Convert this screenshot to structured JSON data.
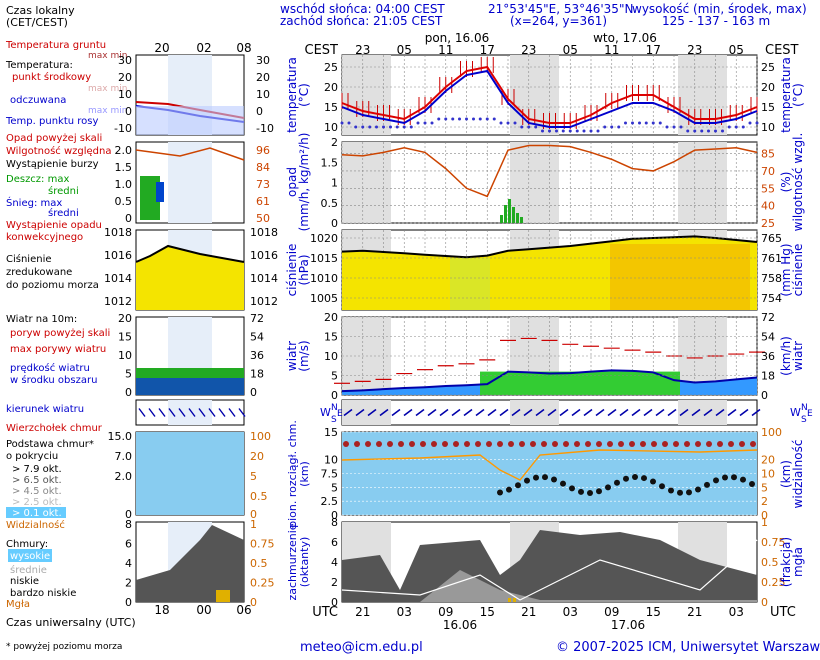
{
  "header": {
    "sunrise": "wschód słońca: 04:00 CEST",
    "sunset": "zachód słońca: 21:05 CEST",
    "coords": "21°53'45\"E, 53°46'35\"N",
    "grid": "(x=264, y=361)",
    "elevation_title": "wysokość (min, środek, max)",
    "elevation_values": "125 - 137 - 163 m"
  },
  "timeline": {
    "cest_label": "CEST",
    "utc_label": "UTC",
    "day1": "pon, 16.06",
    "day2": "wto, 17.06",
    "date1": "16.06",
    "date2": "17.06",
    "cest_hours": [
      "23",
      "05",
      "11",
      "17",
      "23",
      "05",
      "11",
      "17",
      "23",
      "05"
    ],
    "utc_hours": [
      "21",
      "03",
      "09",
      "15",
      "21",
      "03",
      "09",
      "15",
      "21",
      "03"
    ],
    "legend_cest_hours": [
      "20",
      "02",
      "08"
    ],
    "legend_utc_hours": [
      "18",
      "00",
      "06"
    ]
  },
  "legend": {
    "time_zone": "Czas lokalny\n(CET/CEST)",
    "soil_temp": "Temperatura gruntu",
    "soil_maxmin": "max min",
    "temperature": "Temperatura:",
    "midpoint": "punkt środkowy",
    "midpoint_maxmin": "max min",
    "perceived": "odczuwana",
    "perceived_maxmin": "max min",
    "dewpoint": "Temp. punktu rosy",
    "precip_over": "Opad powyżej skali",
    "humidity": "Wilgotność względna",
    "storm": "Wystąpienie burzy",
    "rain_max": "Deszcz: max",
    "rain_mean": "średni",
    "snow_max": "Śnieg:    max",
    "snow_mean": "średni",
    "conv": "Wystąpienie opadu\nkonwekcyjnego",
    "pressure": "Ciśnienie\nzredukowane\ndo poziomu morza",
    "wind_title": "Wiatr na 10m:",
    "gust_over": "poryw powyżej skali",
    "gust_max": "max porywy wiatru",
    "wind_mean": "prędkość wiatru\nw środku obszaru",
    "wind_dir": "kierunek wiatru",
    "cloud_top": "Wierzchołek chmur",
    "cloud_base": "Podstawa chmur*\no pokryciu",
    "okt": [
      "> 7.9 okt.",
      "> 6.5 okt.",
      "> 4.5 okt.",
      "> 2.5 okt.",
      "> 0.1 okt."
    ],
    "visibility": "Widzialność",
    "clouds": "Chmury:",
    "cl_high": "wysokie",
    "cl_mid": "średnie",
    "cl_low": "niskie",
    "cl_vlow": "bardzo niskie",
    "fog": "Mgła",
    "utc_time": "Czas uniwersalny (UTC)"
  },
  "axes": {
    "temp_left": "temperatura\n(°C)",
    "temp_right": "temperatura\n(°C)",
    "precip_left": "opad\n(mm/h, kg/m²/h)",
    "hum_right": "(%)\nwilgotność wzgl.",
    "press_left": "ciśnienie\n(hPa)",
    "press_right": "(mm Hg)\nciśnienie",
    "wind_left": "wiatr\n(m/s)",
    "wind_right": "(km/h)\nwiatr",
    "cloud_left": "pion. rozciągł. chm.\n(km)",
    "cloud_right": "(km)\nwidzialność",
    "cover_left": "zachmurzenie\n(oktanty)",
    "cover_right": "(frakcja)\nmgła"
  },
  "footer": {
    "mail": "meteo@icm.edu.pl",
    "copy": "© 2007-2025 ICM, Uniwersytet Warszawski",
    "note": "* powyżej poziomu morza"
  },
  "chart_data": [
    {
      "type": "line",
      "title": "temperatura",
      "ylabel": "temperatura (°C)",
      "ylim": [
        8,
        28
      ],
      "x_hours_utc": [
        18,
        21,
        0,
        3,
        6,
        9,
        12,
        15,
        18,
        21,
        0,
        3,
        6,
        9,
        12,
        15,
        18,
        21,
        0,
        3,
        6
      ],
      "series": [
        {
          "name": "punkt środkowy",
          "values": [
            16,
            14,
            13,
            12,
            15,
            20,
            24,
            25,
            17,
            12,
            11,
            11,
            13,
            16,
            18,
            18,
            15,
            12,
            12,
            13,
            15
          ]
        },
        {
          "name": "odczuwana",
          "values": [
            15,
            13,
            12,
            11,
            14,
            19,
            23,
            24,
            16,
            11,
            10,
            10,
            12,
            14,
            16,
            16,
            14,
            11,
            11,
            12,
            14
          ]
        },
        {
          "name": "Temp. punktu rosy",
          "values": [
            12,
            11,
            11,
            11,
            12,
            13,
            13,
            13,
            12,
            11,
            10,
            10,
            10,
            11,
            12,
            12,
            11,
            10,
            10,
            11,
            12
          ]
        }
      ],
      "yticks": [
        10,
        15,
        20,
        25
      ]
    },
    {
      "type": "line",
      "title": "wilgotność wzgl.",
      "ylabel": "(%)",
      "ylim": [
        25,
        95
      ],
      "yticks_left": [
        0,
        0.5,
        1,
        1.5,
        2
      ],
      "yticks_right": [
        25,
        40,
        55,
        70,
        85
      ],
      "series": [
        {
          "name": "Wilgotność względna",
          "values": [
            84,
            83,
            86,
            90,
            86,
            72,
            55,
            48,
            88,
            92,
            92,
            91,
            86,
            80,
            72,
            70,
            78,
            88,
            89,
            90,
            86
          ]
        },
        {
          "name": "Deszcz średni",
          "values": [
            0,
            0,
            0,
            0,
            0,
            0,
            0,
            0,
            0.5,
            0,
            0,
            0,
            0,
            0,
            0,
            0,
            0,
            0,
            0,
            0,
            0
          ]
        }
      ]
    },
    {
      "type": "area",
      "title": "ciśnienie",
      "ylabel": "ciśnienie (hPa)",
      "ylim": [
        1002,
        1022
      ],
      "yticks_left": [
        1005,
        1010,
        1015,
        1020
      ],
      "yticks_right": [
        754,
        758,
        761,
        765
      ],
      "series": [
        {
          "name": "ciśnienie",
          "values": [
            1016.6,
            1016.8,
            1016.5,
            1016.2,
            1015.8,
            1015.5,
            1015.2,
            1015.6,
            1016.8,
            1017.2,
            1017.6,
            1018.0,
            1018.6,
            1019.2,
            1019.8,
            1020.0,
            1020.2,
            1020.4,
            1020.0,
            1019.5,
            1019.0
          ]
        }
      ]
    },
    {
      "type": "area",
      "title": "wiatr",
      "ylabel": "wiatr (m/s)",
      "ylim": [
        0,
        20
      ],
      "yticks_left": [
        0,
        5,
        10,
        15,
        20
      ],
      "yticks_right": [
        0,
        18,
        36,
        54,
        72
      ],
      "series": [
        {
          "name": "prędkość wiatru",
          "values": [
            1,
            1.2,
            1.5,
            1.8,
            2,
            2.3,
            2.5,
            2.8,
            6,
            5.8,
            5.5,
            5.6,
            6,
            6.3,
            6.2,
            5.8,
            3.8,
            3.2,
            3.5,
            4,
            4.5
          ]
        },
        {
          "name": "max porywy wiatru",
          "values": [
            3,
            3.5,
            4,
            5.5,
            6.5,
            7.5,
            8,
            9,
            14,
            14.5,
            14,
            13,
            12.5,
            12,
            11.5,
            11,
            10,
            9.5,
            10,
            10.5,
            11
          ]
        }
      ]
    },
    {
      "type": "scatter",
      "title": "pion. rozciągł. chm.",
      "ylabel": "(km)",
      "ylim": [
        0,
        15
      ],
      "yticks_left": [
        0,
        2.5,
        5,
        7.5,
        10,
        15
      ],
      "yticks_right": [
        0,
        2,
        5,
        10,
        20,
        100
      ]
    },
    {
      "type": "area",
      "title": "zachmurzenie",
      "ylabel": "(oktanty)",
      "ylim": [
        0,
        8
      ],
      "yticks_left": [
        0,
        2,
        4,
        6,
        8
      ],
      "yticks_right": [
        0,
        0.25,
        0.5,
        0.75,
        1
      ]
    }
  ]
}
